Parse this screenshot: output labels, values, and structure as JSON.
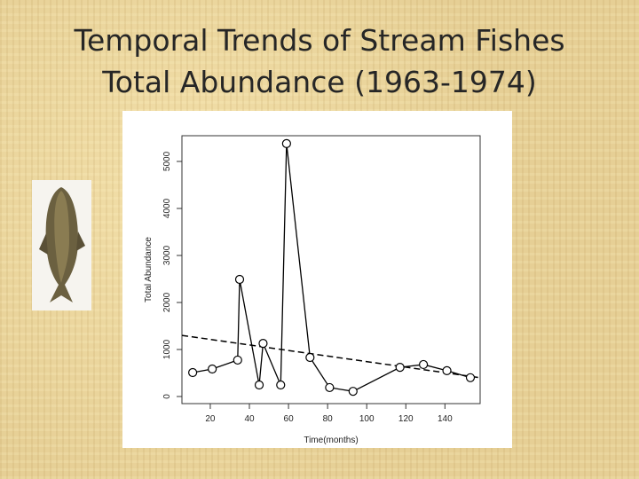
{
  "slide": {
    "title": [
      "Temporal Trends of Stream Fishes",
      "Total Abundance (1963-1974)"
    ]
  },
  "chart_data": {
    "type": "line",
    "x_label": "Time(months)",
    "y_label": "Total Abundance",
    "x": [
      11,
      21,
      34,
      35,
      45,
      47,
      56,
      59,
      71,
      81,
      93,
      117,
      129,
      141,
      153
    ],
    "values": [
      510,
      585,
      775,
      2490,
      245,
      1130,
      245,
      5380,
      830,
      190,
      110,
      620,
      680,
      550,
      400
    ],
    "trend": {
      "x": [
        5.5,
        158
      ],
      "values": [
        1300,
        400
      ]
    },
    "xlim": [
      5.5,
      158
    ],
    "ylim": [
      -151,
      5547
    ],
    "xticks": [
      20,
      40,
      60,
      80,
      100,
      120,
      140
    ],
    "yticks": [
      0,
      1000,
      2000,
      3000,
      4000,
      5000
    ],
    "color": "#000000"
  }
}
